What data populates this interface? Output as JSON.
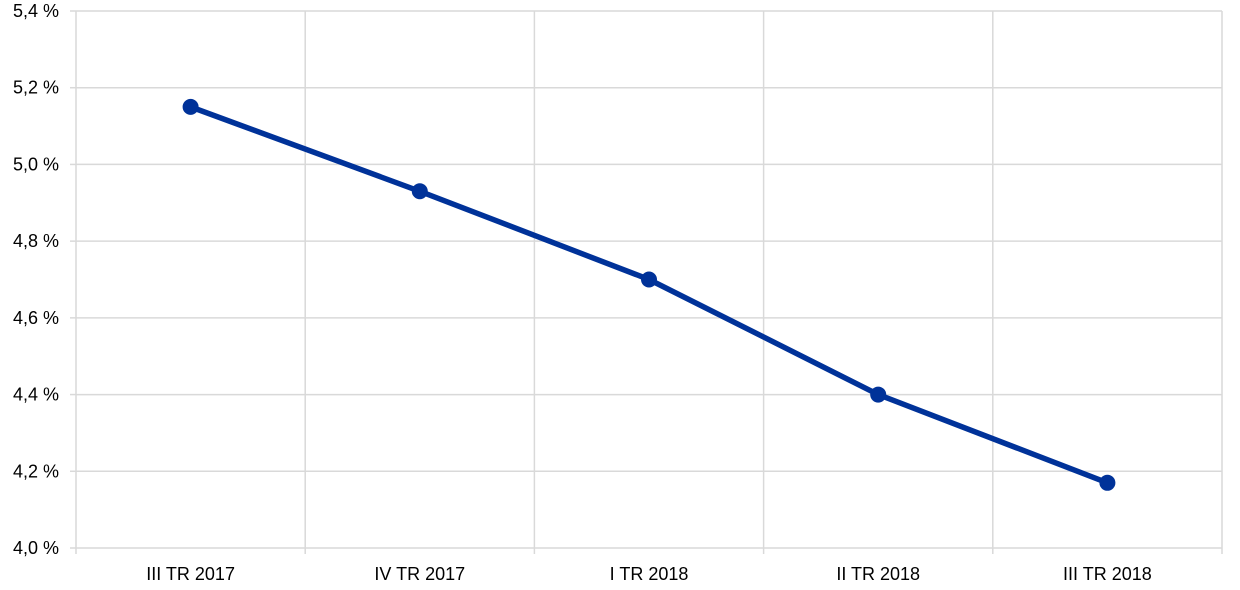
{
  "colors": {
    "line": "#003299",
    "grid": "#d9d9d9",
    "text": "#000000",
    "background": "#ffffff"
  },
  "chart_data": {
    "type": "line",
    "title": "",
    "xlabel": "",
    "ylabel": "",
    "categories": [
      "III TR 2017",
      "IV TR 2017",
      "I TR 2018",
      "II TR 2018",
      "III TR 2018"
    ],
    "series": [
      {
        "values": [
          5.15,
          4.93,
          4.7,
          4.4,
          4.17
        ]
      }
    ],
    "ylim": [
      4.0,
      5.4
    ],
    "yticks": [
      4.0,
      4.2,
      4.4,
      4.6,
      4.8,
      5.0,
      5.2,
      5.4
    ],
    "ytick_labels": [
      "4,0 %",
      "4,2 %",
      "4,4 %",
      "4,6 %",
      "4,8 %",
      "5,0 %",
      "5,2 %",
      "5,4 %"
    ],
    "grid": true,
    "legend": "none",
    "markers": true
  }
}
